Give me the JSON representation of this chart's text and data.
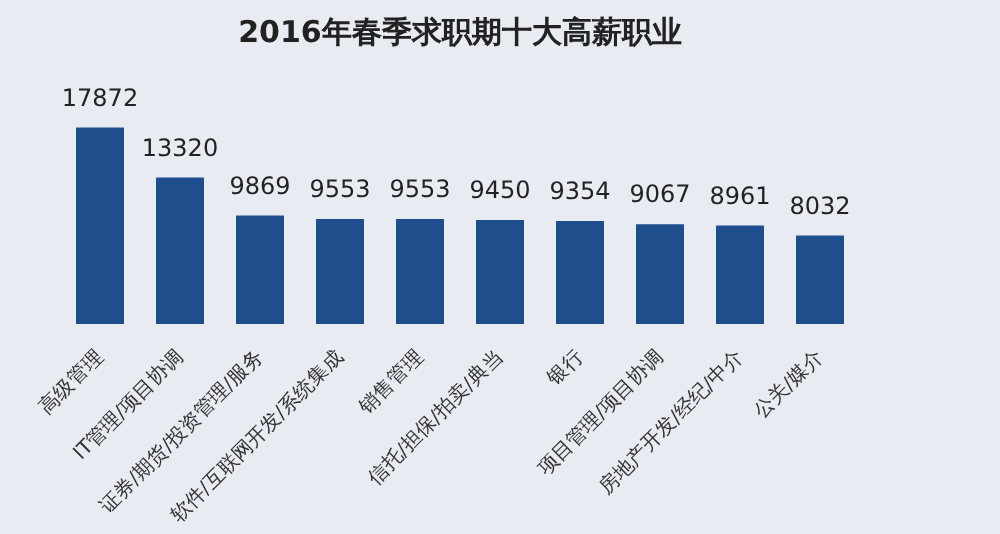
{
  "chart_data": {
    "type": "bar",
    "title": "2016年春季求职期十大高薪职业",
    "categories": [
      "高级管理",
      "IT管理/项目协调",
      "证券/期货/投资管理/服务",
      "软件/互联网开发/系统集成",
      "销售管理",
      "信托/担保/拍卖/典当",
      "银行",
      "项目管理/项目协调",
      "房地产开发/经纪/中介",
      "公关/媒介"
    ],
    "values": [
      17872,
      13320,
      9869,
      9553,
      9553,
      9450,
      9354,
      9067,
      8961,
      8032
    ],
    "color": "#1f4e8c",
    "data_labels": true,
    "grid": false,
    "legend": false
  }
}
